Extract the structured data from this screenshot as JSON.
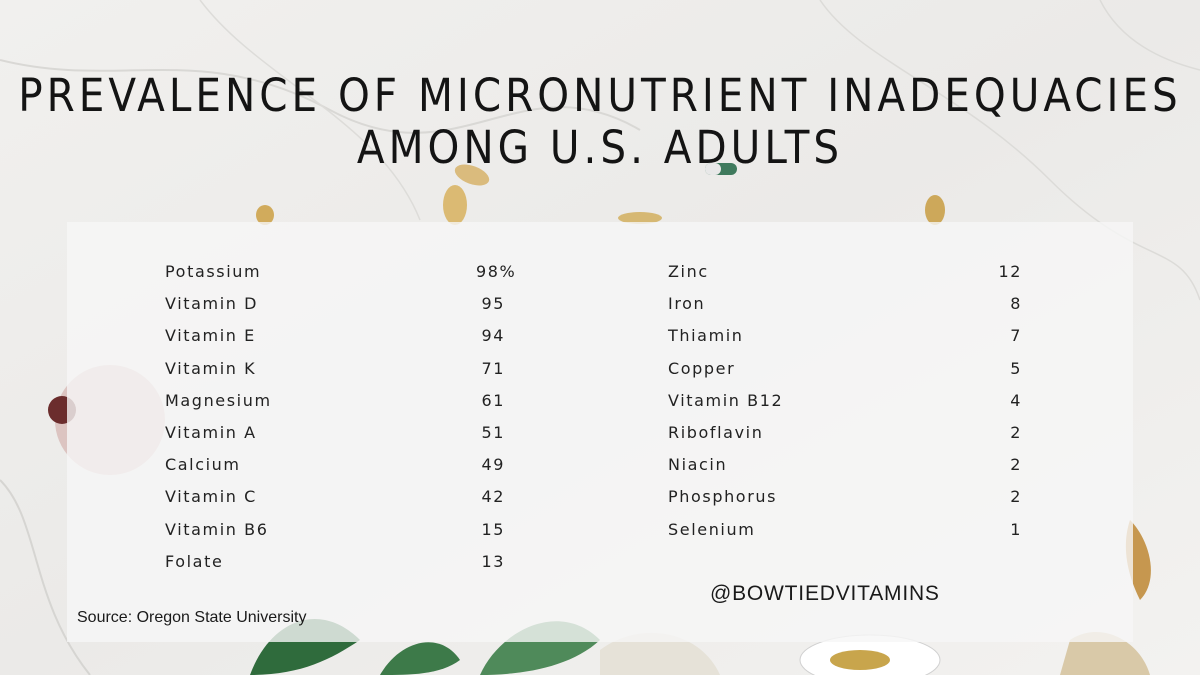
{
  "title_lines": [
    "PREVALENCE OF MICRONUTRIENT INADEQUACIES",
    "AMONG U.S. ADULTS"
  ],
  "chart_data": {
    "type": "table",
    "title": "PREVALENCE OF MICRONUTRIENT INADEQUACIES AMONG U.S. ADULTS",
    "columns": [
      {
        "rows": [
          {
            "nutrient": "Potassium",
            "value": "98%"
          },
          {
            "nutrient": "Vitamin D",
            "value": "95"
          },
          {
            "nutrient": "Vitamin E",
            "value": "94"
          },
          {
            "nutrient": "Vitamin K",
            "value": "71"
          },
          {
            "nutrient": "Magnesium",
            "value": "61"
          },
          {
            "nutrient": "Vitamin A",
            "value": "51"
          },
          {
            "nutrient": "Calcium",
            "value": "49"
          },
          {
            "nutrient": "Vitamin C",
            "value": "42"
          },
          {
            "nutrient": "Vitamin B6",
            "value": "15"
          },
          {
            "nutrient": "Folate",
            "value": "13"
          }
        ]
      },
      {
        "rows": [
          {
            "nutrient": "Zinc",
            "value": "12"
          },
          {
            "nutrient": "Iron",
            "value": "8"
          },
          {
            "nutrient": "Thiamin",
            "value": "7"
          },
          {
            "nutrient": "Copper",
            "value": "5"
          },
          {
            "nutrient": "Vitamin B12",
            "value": "4"
          },
          {
            "nutrient": "Riboflavin",
            "value": "2"
          },
          {
            "nutrient": "Niacin",
            "value": "2"
          },
          {
            "nutrient": "Phosphorus",
            "value": "2"
          },
          {
            "nutrient": "Selenium",
            "value": "1"
          }
        ]
      }
    ]
  },
  "handle": "@BOWTIEDVITAMINS",
  "source": "Source: Oregon State University",
  "colors": {
    "text": "#222222",
    "panel": "#f6f6f6",
    "leaf_green": "#4f8a5a"
  }
}
